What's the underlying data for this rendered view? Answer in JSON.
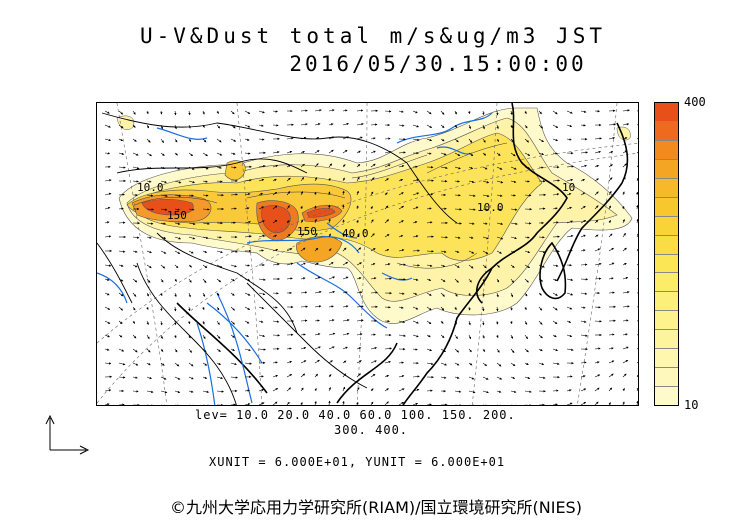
{
  "title_line1": "U-V&Dust total m/s&ug/m3 JST",
  "title_line2": "2016/05/30.15:00:00",
  "colorbar": {
    "max_label": "400",
    "min_label": "10",
    "colors": [
      "#e8501a",
      "#ee6a1c",
      "#f28a1f",
      "#f5a524",
      "#f7b82a",
      "#f8c72e",
      "#f9d436",
      "#fadd45",
      "#fbe655",
      "#fced68",
      "#fcf07a",
      "#fdf38c",
      "#fdf59d",
      "#fef7ad",
      "#fef8bd",
      "#fffacc"
    ]
  },
  "levels_line1": "lev= 10.0 20.0 40.0 60.0 100. 150. 200.",
  "levels_line2": "300. 400.",
  "units_line": "XUNIT = 6.000E+01, YUNIT = 6.000E+01",
  "credit": "©九州大学応用力学研究所(RIAM)/国立環境研究所(NIES)",
  "contour_labels": [
    "10.0",
    "150",
    "150",
    "40.0",
    "10.0",
    "10"
  ],
  "map_colors": {
    "rivers": "#1a6ee0",
    "coast": "#000000",
    "border": "#000000"
  }
}
